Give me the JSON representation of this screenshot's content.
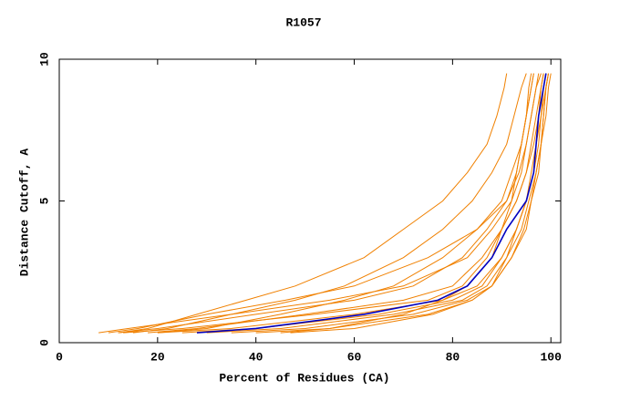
{
  "chart_data": {
    "type": "line",
    "title": "R1057",
    "x_label": "Percent of Residues (CA)",
    "y_label": "Distance Cutoff, A",
    "xlim": [
      0,
      102
    ],
    "ylim": [
      0,
      10
    ],
    "xticks": [
      0,
      20,
      40,
      60,
      80,
      100
    ],
    "yticks": [
      0,
      5,
      10
    ],
    "cutoffs": [
      0.35,
      0.5,
      1,
      1.5,
      2,
      3,
      4,
      5,
      6,
      7,
      8,
      9,
      9.5
    ],
    "series": [
      {
        "color": "#f08000",
        "values": [
          8,
          14,
          35,
          55,
          70,
          83,
          88,
          92,
          94,
          95,
          96,
          97,
          97.5
        ]
      },
      {
        "color": "#f08000",
        "values": [
          12,
          20,
          40,
          60,
          72,
          82,
          87,
          91,
          93.5,
          95,
          96,
          97,
          98
        ]
      },
      {
        "color": "#f08000",
        "values": [
          13,
          25,
          52,
          75,
          82,
          87,
          90,
          93,
          95,
          96,
          97,
          98,
          98.5
        ]
      },
      {
        "color": "#f08000",
        "values": [
          20,
          35,
          60,
          78,
          85,
          90,
          93,
          95,
          96.5,
          97.5,
          98,
          99,
          99.5
        ]
      },
      {
        "color": "#f08000",
        "values": [
          25,
          40,
          65,
          80,
          86,
          90,
          93,
          95,
          96.5,
          97,
          98,
          98.5,
          99
        ]
      },
      {
        "color": "#f08000",
        "values": [
          30,
          45,
          68,
          82,
          87,
          91,
          94,
          95.5,
          97,
          98,
          98.5,
          99,
          99.5
        ]
      },
      {
        "color": "#f08000",
        "values": [
          35,
          50,
          72,
          83,
          88,
          92,
          94.5,
          96,
          97,
          98,
          98.5,
          99,
          99.5
        ]
      },
      {
        "color": "#f08000",
        "values": [
          40,
          55,
          75,
          84,
          88,
          92,
          95,
          96,
          97.5,
          98,
          99,
          99.5,
          100
        ]
      },
      {
        "color": "#f08000",
        "values": [
          12,
          18,
          28,
          38,
          48,
          62,
          70,
          78,
          83,
          87,
          89,
          90.5,
          91
        ]
      },
      {
        "color": "#f08000",
        "values": [
          15,
          22,
          35,
          48,
          58,
          70,
          78,
          84,
          88,
          91,
          92.5,
          94,
          95
        ]
      },
      {
        "color": "#f08000",
        "values": [
          20,
          30,
          45,
          58,
          68,
          78,
          85,
          90,
          92,
          94,
          95,
          96,
          96.5
        ]
      },
      {
        "color": "#f08000",
        "values": [
          45,
          55,
          70,
          78,
          83,
          88,
          90,
          92,
          93,
          94,
          95,
          96,
          96.5
        ]
      },
      {
        "color": "#f08000",
        "values": [
          10,
          16,
          30,
          46,
          60,
          75,
          85,
          91,
          93,
          94,
          95,
          95.5,
          96
        ]
      },
      {
        "color": "#f08000",
        "values": [
          47,
          60,
          76,
          84,
          88,
          91,
          93,
          95,
          96,
          97,
          97.5,
          98,
          98.5
        ]
      },
      {
        "color": "#f08000",
        "values": [
          18,
          28,
          50,
          70,
          80,
          86,
          90,
          93,
          95,
          96.5,
          97.5,
          98.5,
          99
        ]
      },
      {
        "color": "#0000c0",
        "values": [
          28,
          40,
          62,
          77,
          83,
          88,
          91,
          95,
          96.5,
          97,
          97.5,
          98.5,
          99
        ]
      }
    ]
  }
}
